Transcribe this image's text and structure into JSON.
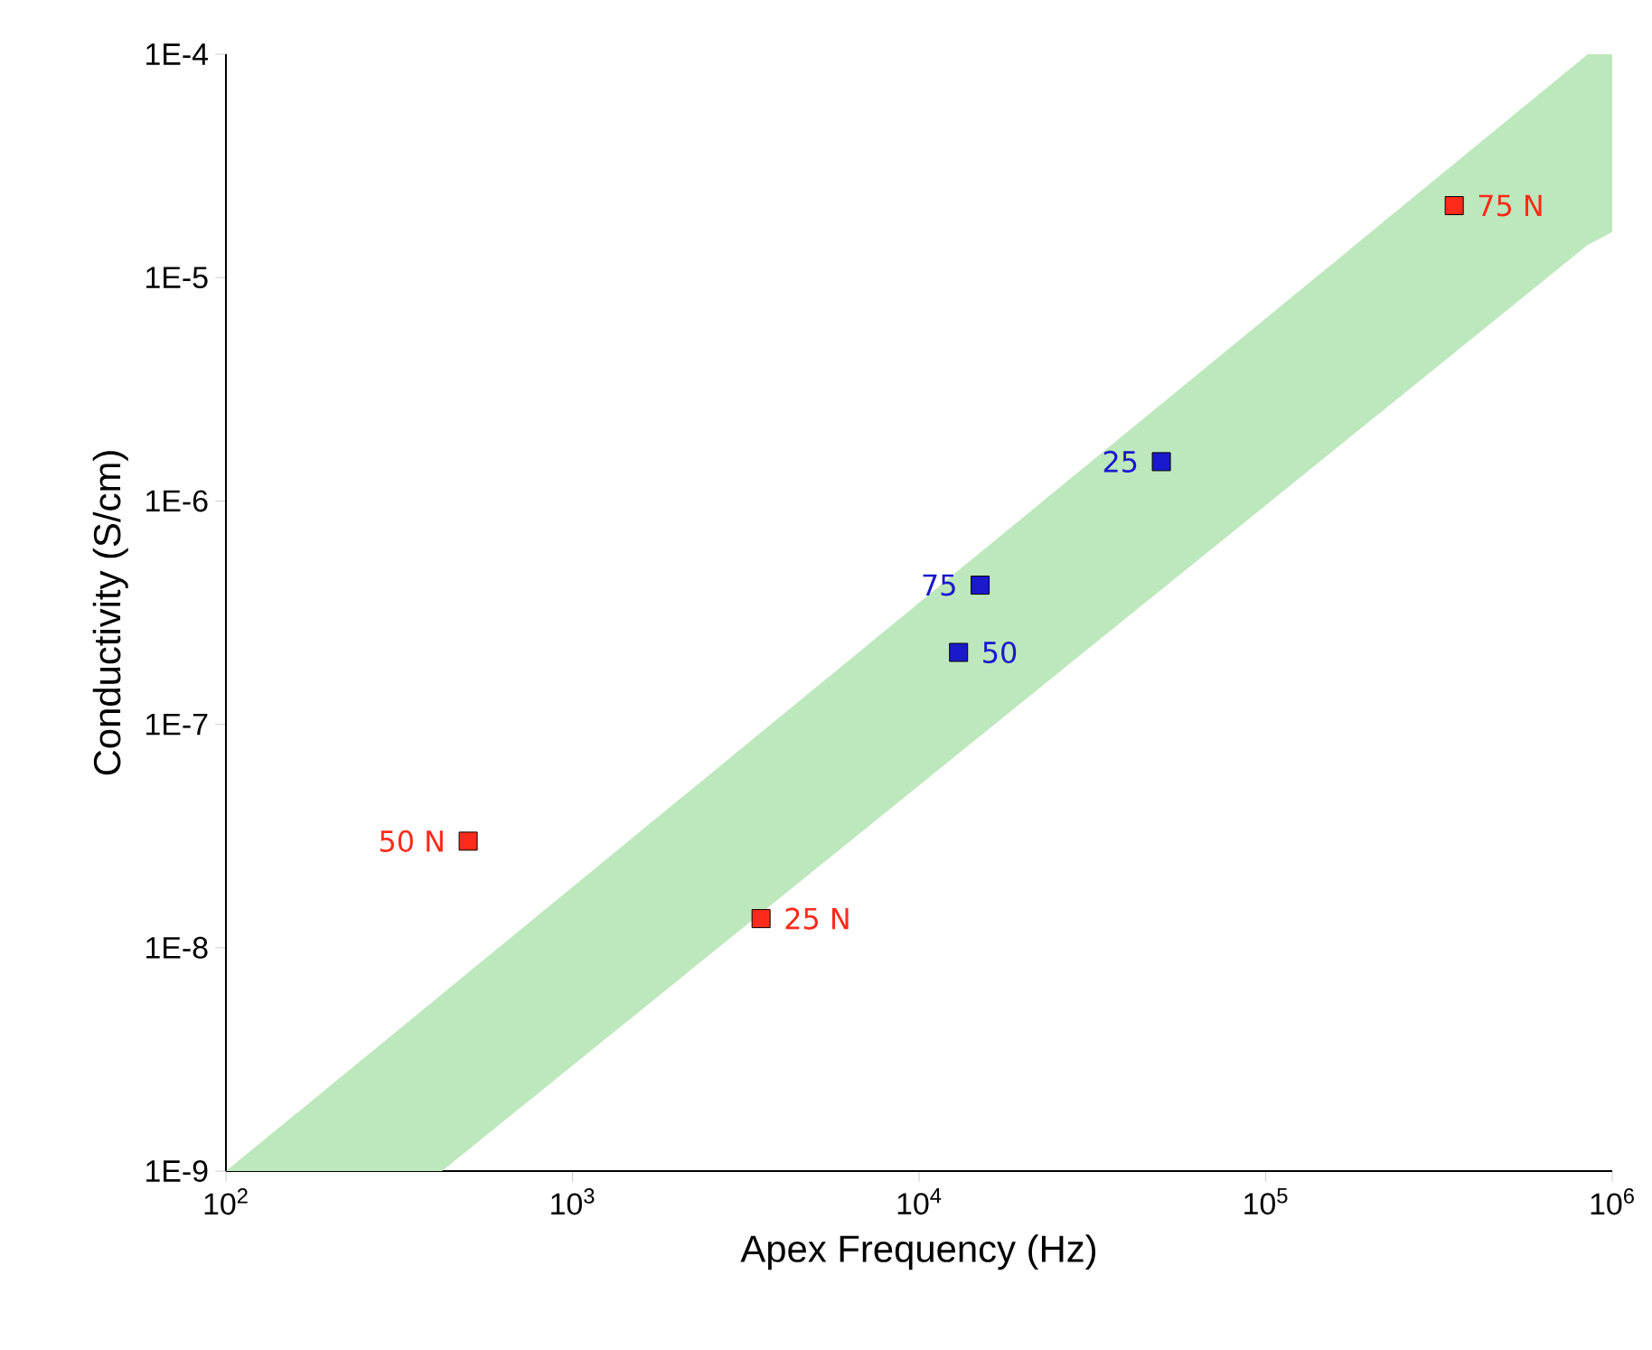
{
  "chart_data": {
    "type": "scatter",
    "xlabel": "Apex Frequency (Hz)",
    "ylabel": "Conductivity (S/cm)",
    "log": "xy",
    "marker": "square",
    "grid": false,
    "xlim": [
      100,
      1000000
    ],
    "ylim": [
      1e-09,
      0.0001
    ],
    "xticks": [
      {
        "value": 100,
        "label": "10$^{2}$"
      },
      {
        "value": 1000,
        "label": "10$^{3}$"
      },
      {
        "value": 10000,
        "label": "10$^{4}$"
      },
      {
        "value": 100000,
        "label": "10$^{5}$"
      },
      {
        "value": 1000000,
        "label": "10$^{6}$"
      }
    ],
    "yticks": [
      {
        "value": 1e-09,
        "label": "1E-9"
      },
      {
        "value": 1e-08,
        "label": "1E-8"
      },
      {
        "value": 1e-07,
        "label": "1E-7"
      },
      {
        "value": 1e-06,
        "label": "1E-6"
      },
      {
        "value": 1e-05,
        "label": "1E-5"
      },
      {
        "value": 0.0001,
        "label": "1E-4"
      }
    ],
    "series": [
      {
        "type": "line",
        "color": "#bde8bd",
        "x": [
          100,
          420,
          850000,
          1000000
        ],
        "values": [
          null,
          null,
          null,
          null
        ],
        "lower": [
          1e-09,
          1e-09,
          1.4e-05,
          1.6e-05
        ],
        "upper": [
          1e-09,
          6.2e-09,
          0.0001,
          0.0001
        ]
      },
      {
        "color": "#ff2a1a",
        "x": [
          350000,
          500,
          3500
        ],
        "values": [
          2.1e-05,
          3e-08,
          1.35e-08
        ]
      },
      {
        "color": "#1a1acc",
        "x": [
          50000,
          15000,
          13000
        ],
        "values": [
          1.5e-06,
          4.2e-07,
          2.1e-07
        ]
      }
    ],
    "annotations": [
      {
        "text": "75 N",
        "x": 350000,
        "y": 2.1e-05
      },
      {
        "text": "50 N",
        "x": 500,
        "y": 3e-08
      },
      {
        "text": "25 N",
        "x": 3500,
        "y": 1.35e-08
      },
      {
        "text": "25",
        "x": 50000,
        "y": 1.5e-06
      },
      {
        "text": "75",
        "x": 15000,
        "y": 4.2e-07
      },
      {
        "text": "50",
        "x": 13000,
        "y": 2.1e-07
      }
    ]
  }
}
